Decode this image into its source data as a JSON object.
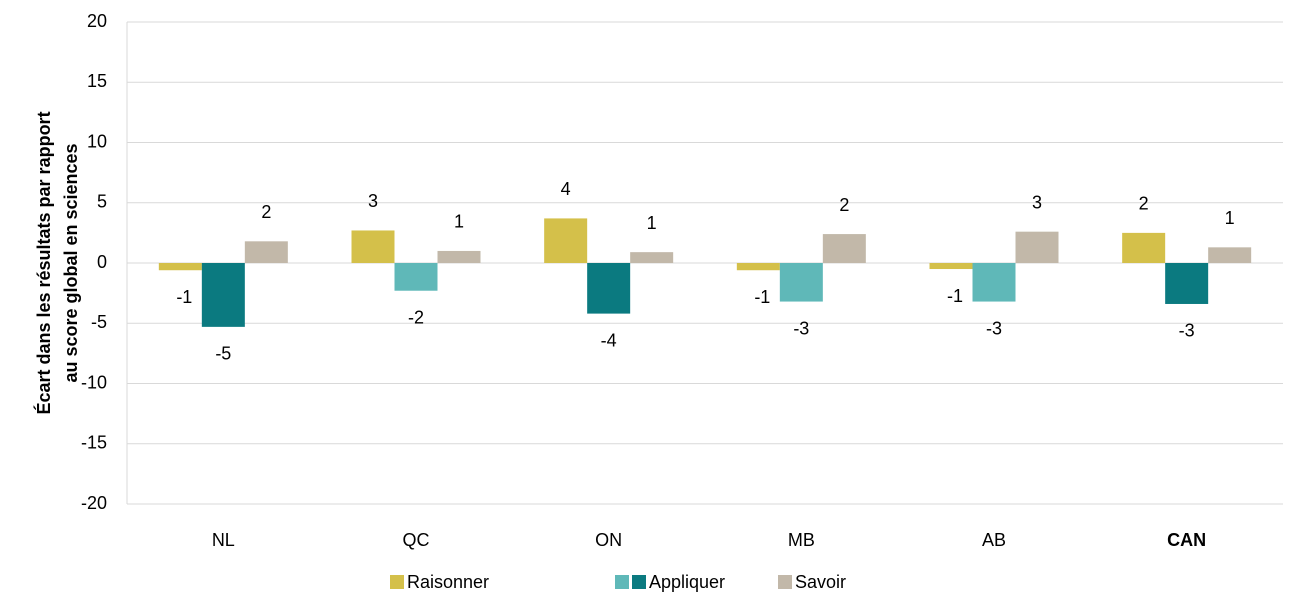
{
  "chart_data": {
    "type": "bar",
    "y_label": [
      "Écart dans les résultats par rapport",
      "au score global en sciences"
    ],
    "categories": [
      "NL",
      "QC",
      "ON",
      "MB",
      "AB",
      "CAN"
    ],
    "bold_categories": [
      5
    ],
    "series": [
      {
        "name": "Raisonner",
        "color": "#d4c04a",
        "values": [
          -0.6,
          2.7,
          3.7,
          -0.6,
          -0.5,
          2.5
        ],
        "value_labels": [
          "-1",
          "3",
          "4",
          "-1",
          "-1",
          "2"
        ]
      },
      {
        "name": "Appliquer",
        "colors": [
          "#0b7a80",
          "#5fb8b8",
          "#0b7a80",
          "#5fb8b8",
          "#5fb8b8",
          "#0b7a80"
        ],
        "legend_colors": [
          "#5fb8b8",
          "#0b7a80"
        ],
        "values": [
          -5.3,
          -2.3,
          -4.2,
          -3.2,
          -3.2,
          -3.4
        ],
        "value_labels": [
          "-5",
          "-2",
          "-4",
          "-3",
          "-3",
          "-3"
        ]
      },
      {
        "name": "Savoir",
        "color": "#c2b8a9",
        "values": [
          1.8,
          1.0,
          0.9,
          2.4,
          2.6,
          1.3
        ],
        "value_labels": [
          "2",
          "1",
          "1",
          "2",
          "3",
          "1"
        ]
      }
    ],
    "ylim": [
      -20,
      20
    ],
    "yticks": [
      -20,
      -15,
      -10,
      -5,
      0,
      5,
      10,
      15,
      20
    ],
    "grid": true,
    "legend": "bottom"
  }
}
